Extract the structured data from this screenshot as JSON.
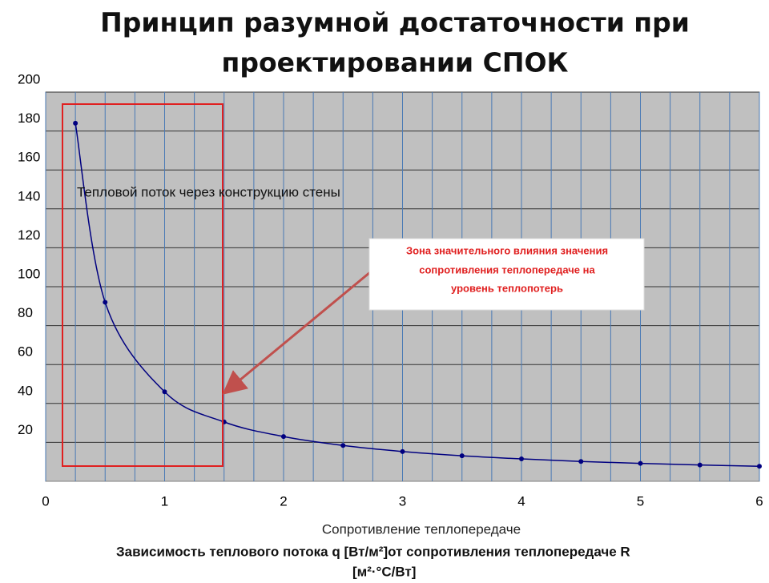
{
  "chart_data": {
    "type": "line",
    "title": [
      "Принцип разумной достаточности при",
      "проектировании СПОК"
    ],
    "x": [
      0.25,
      0.5,
      1,
      1.5,
      2,
      2.5,
      3,
      3.5,
      4,
      4.5,
      5,
      5.5,
      6
    ],
    "series": [
      {
        "name": "Тепловой поток через конструкцию стены",
        "color": "#000080",
        "values": [
          184,
          92,
          46,
          30.5,
          23,
          18.4,
          15.3,
          13.1,
          11.5,
          10.2,
          9.2,
          8.4,
          7.7
        ]
      }
    ],
    "xlim": [
      0,
      6
    ],
    "xticks": [
      0,
      1,
      2,
      3,
      4,
      5,
      6
    ],
    "ylim": [
      0,
      200
    ],
    "yticks": [
      20,
      40,
      60,
      80,
      100,
      120,
      140,
      160,
      180,
      200
    ],
    "grid": true,
    "xlabel": "Сопротивление теплопередаче",
    "annotation": [
      "Зона  значительного влияния  значения",
      "сопротивления теплопередаче на",
      "уровень теплопотерь"
    ],
    "caption": [
      "Зависимость теплового потока q [Вт/м²]от сопротивления теплопередаче R",
      "[м²·°С/Вт]"
    ]
  }
}
